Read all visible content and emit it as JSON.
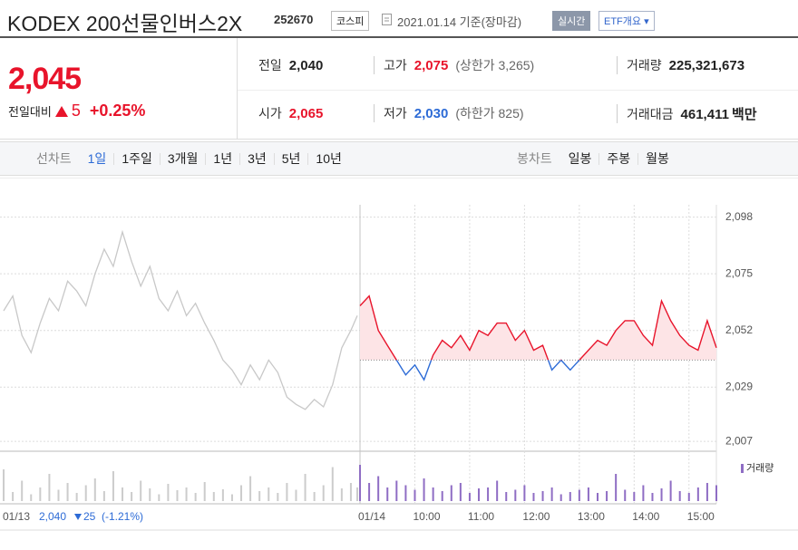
{
  "header": {
    "title": "KODEX 200선물인버스2X",
    "code": "252670",
    "market": "코스피",
    "date": "2021.01.14 기준(장마감)",
    "realtime": "실시간",
    "etf": "ETF개요"
  },
  "price": {
    "current": "2,045",
    "change_label": "전일대비",
    "change": "5",
    "change_pct": "+0.25%"
  },
  "summary": [
    {
      "label": "전일",
      "value": "2,040",
      "color": "#222222"
    },
    {
      "label": "고가",
      "value": "2,075",
      "color": "#e8142b",
      "note": "(상한가 3,265)"
    },
    {
      "label": "거래량",
      "value": "225,321,673",
      "color": "#222222"
    },
    {
      "label": "시가",
      "value": "2,065",
      "color": "#e8142b"
    },
    {
      "label": "저가",
      "value": "2,030",
      "color": "#2d6bd6",
      "note": "(하한가 825)"
    },
    {
      "label": "거래대금",
      "value": "461,411",
      "color": "#222222",
      "unit": "백만"
    }
  ],
  "period_tabs": {
    "label": "선차트",
    "items": [
      "1일",
      "1주일",
      "3개월",
      "1년",
      "3년",
      "5년",
      "10년"
    ],
    "active": 0
  },
  "candle_tabs": {
    "label": "봉차트",
    "items": [
      "일봉",
      "주봉",
      "월봉"
    ]
  },
  "prev_info": {
    "close": "2,040",
    "change": "25",
    "change_pct": "(-1.21%)"
  },
  "chart_data": {
    "type": "line",
    "baseline": 2040,
    "ylim": [
      2003,
      2110
    ],
    "yticks": [
      {
        "value": 2007,
        "label": "2,007"
      },
      {
        "value": 2029,
        "label": "2,029"
      },
      {
        "value": 2052,
        "label": "2,052"
      },
      {
        "value": 2075,
        "label": "2,075"
      },
      {
        "value": 2098,
        "label": "2,098"
      }
    ],
    "xlim": [
      -394,
      390
    ],
    "xticks": [
      {
        "value": -394,
        "label": "01/13"
      },
      {
        "value": 0,
        "label": "01/14"
      },
      {
        "value": 60,
        "label": "10:00"
      },
      {
        "value": 120,
        "label": "11:00"
      },
      {
        "value": 180,
        "label": "12:00"
      },
      {
        "value": 240,
        "label": "13:00"
      },
      {
        "value": 300,
        "label": "14:00"
      },
      {
        "value": 360,
        "label": "15:00"
      }
    ],
    "series": [
      {
        "color": "#c8c8c8",
        "x": [
          -390,
          -380,
          -370,
          -360,
          -350,
          -340,
          -330,
          -320,
          -310,
          -300,
          -290,
          -280,
          -270,
          -260,
          -250,
          -240,
          -230,
          -220,
          -210,
          -200,
          -190,
          -180,
          -170,
          -160,
          -150,
          -140,
          -130,
          -120,
          -110,
          -100,
          -90,
          -80,
          -70,
          -60,
          -50,
          -40,
          -30,
          -20,
          -10,
          -3
        ],
        "values": [
          2060,
          2066,
          2050,
          2043,
          2055,
          2065,
          2060,
          2072,
          2068,
          2062,
          2075,
          2085,
          2078,
          2092,
          2080,
          2070,
          2078,
          2065,
          2060,
          2068,
          2058,
          2063,
          2055,
          2048,
          2040,
          2036,
          2030,
          2038,
          2032,
          2040,
          2035,
          2025,
          2022,
          2020,
          2024,
          2021,
          2030,
          2045,
          2052,
          2058
        ]
      },
      {
        "color": "#e8142b",
        "below_color": "#2d6bd6",
        "fill": "#fde4e6",
        "x": [
          0,
          10,
          20,
          30,
          40,
          50,
          60,
          70,
          80,
          90,
          100,
          110,
          120,
          130,
          140,
          150,
          160,
          170,
          180,
          190,
          200,
          210,
          220,
          230,
          240,
          250,
          260,
          270,
          280,
          290,
          300,
          310,
          320,
          330,
          340,
          350,
          360,
          370,
          380,
          390
        ],
        "values": [
          2062,
          2066,
          2052,
          2046,
          2040,
          2034,
          2038,
          2032,
          2042,
          2048,
          2045,
          2050,
          2044,
          2052,
          2050,
          2055,
          2055,
          2048,
          2052,
          2044,
          2046,
          2036,
          2040,
          2036,
          2040,
          2044,
          2048,
          2046,
          2052,
          2056,
          2056,
          2050,
          2046,
          2064,
          2056,
          2050,
          2046,
          2044,
          2056,
          2045
        ]
      }
    ],
    "volume": {
      "name": "거래량",
      "color": "#8f6dc4",
      "prev_color": "#cccccc",
      "ylim": [
        0,
        100
      ],
      "prev": [
        70,
        20,
        45,
        15,
        30,
        60,
        25,
        40,
        18,
        35,
        50,
        22,
        66,
        30,
        20,
        45,
        28,
        15,
        38,
        24,
        30,
        18,
        42,
        20,
        26,
        15,
        35,
        55,
        22,
        30,
        18,
        40,
        25,
        60,
        20,
        35,
        75,
        28,
        40,
        30
      ],
      "today": [
        80,
        40,
        55,
        30,
        45,
        35,
        25,
        50,
        30,
        22,
        35,
        40,
        18,
        28,
        30,
        45,
        20,
        25,
        35,
        18,
        22,
        30,
        15,
        20,
        25,
        30,
        18,
        22,
        60,
        25,
        20,
        35,
        18,
        28,
        45,
        22,
        18,
        30,
        40,
        35
      ]
    }
  }
}
